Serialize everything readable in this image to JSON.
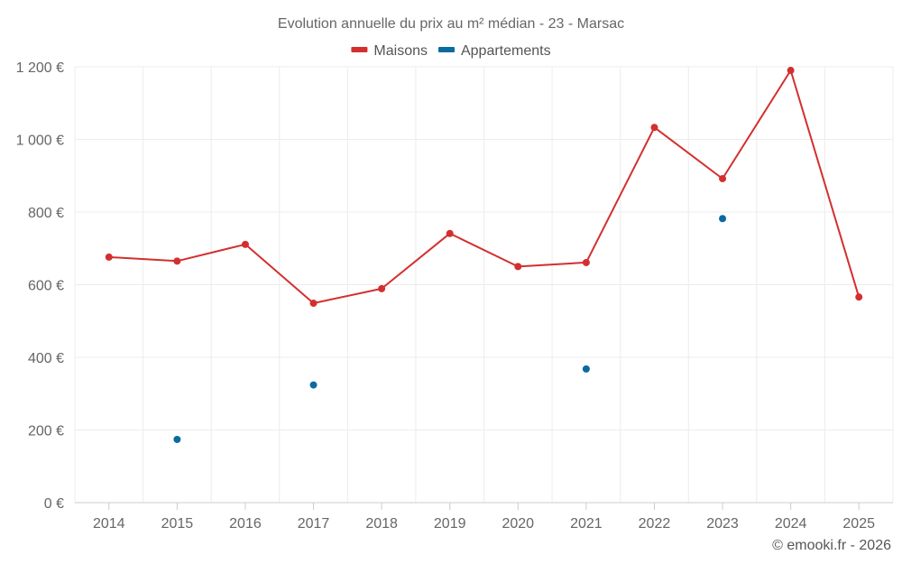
{
  "chart_data": {
    "type": "line",
    "title": "Evolution annuelle du prix au m² médian - 23 - Marsac",
    "categories": [
      "2014",
      "2015",
      "2016",
      "2017",
      "2018",
      "2019",
      "2020",
      "2021",
      "2022",
      "2023",
      "2024",
      "2025"
    ],
    "series": [
      {
        "name": "Maisons",
        "color": "#d32f2f",
        "values": [
          676,
          665,
          711,
          549,
          589,
          741,
          650,
          661,
          1033,
          892,
          1190,
          566
        ]
      },
      {
        "name": "Appartements",
        "color": "#0b6aa0",
        "values": [
          null,
          174,
          null,
          324,
          null,
          null,
          null,
          368,
          null,
          782,
          null,
          null
        ]
      }
    ],
    "ylim": [
      0,
      1200
    ],
    "yticks": [
      0,
      200,
      400,
      600,
      800,
      1000,
      1200
    ],
    "ytick_labels": [
      "0 €",
      "200 €",
      "400 €",
      "600 €",
      "800 €",
      "1 000 €",
      "1 200 €"
    ],
    "xlabel": "",
    "ylabel": "",
    "grid": true,
    "legend_position": "top-center"
  },
  "credit": "© emooki.fr - 2026"
}
